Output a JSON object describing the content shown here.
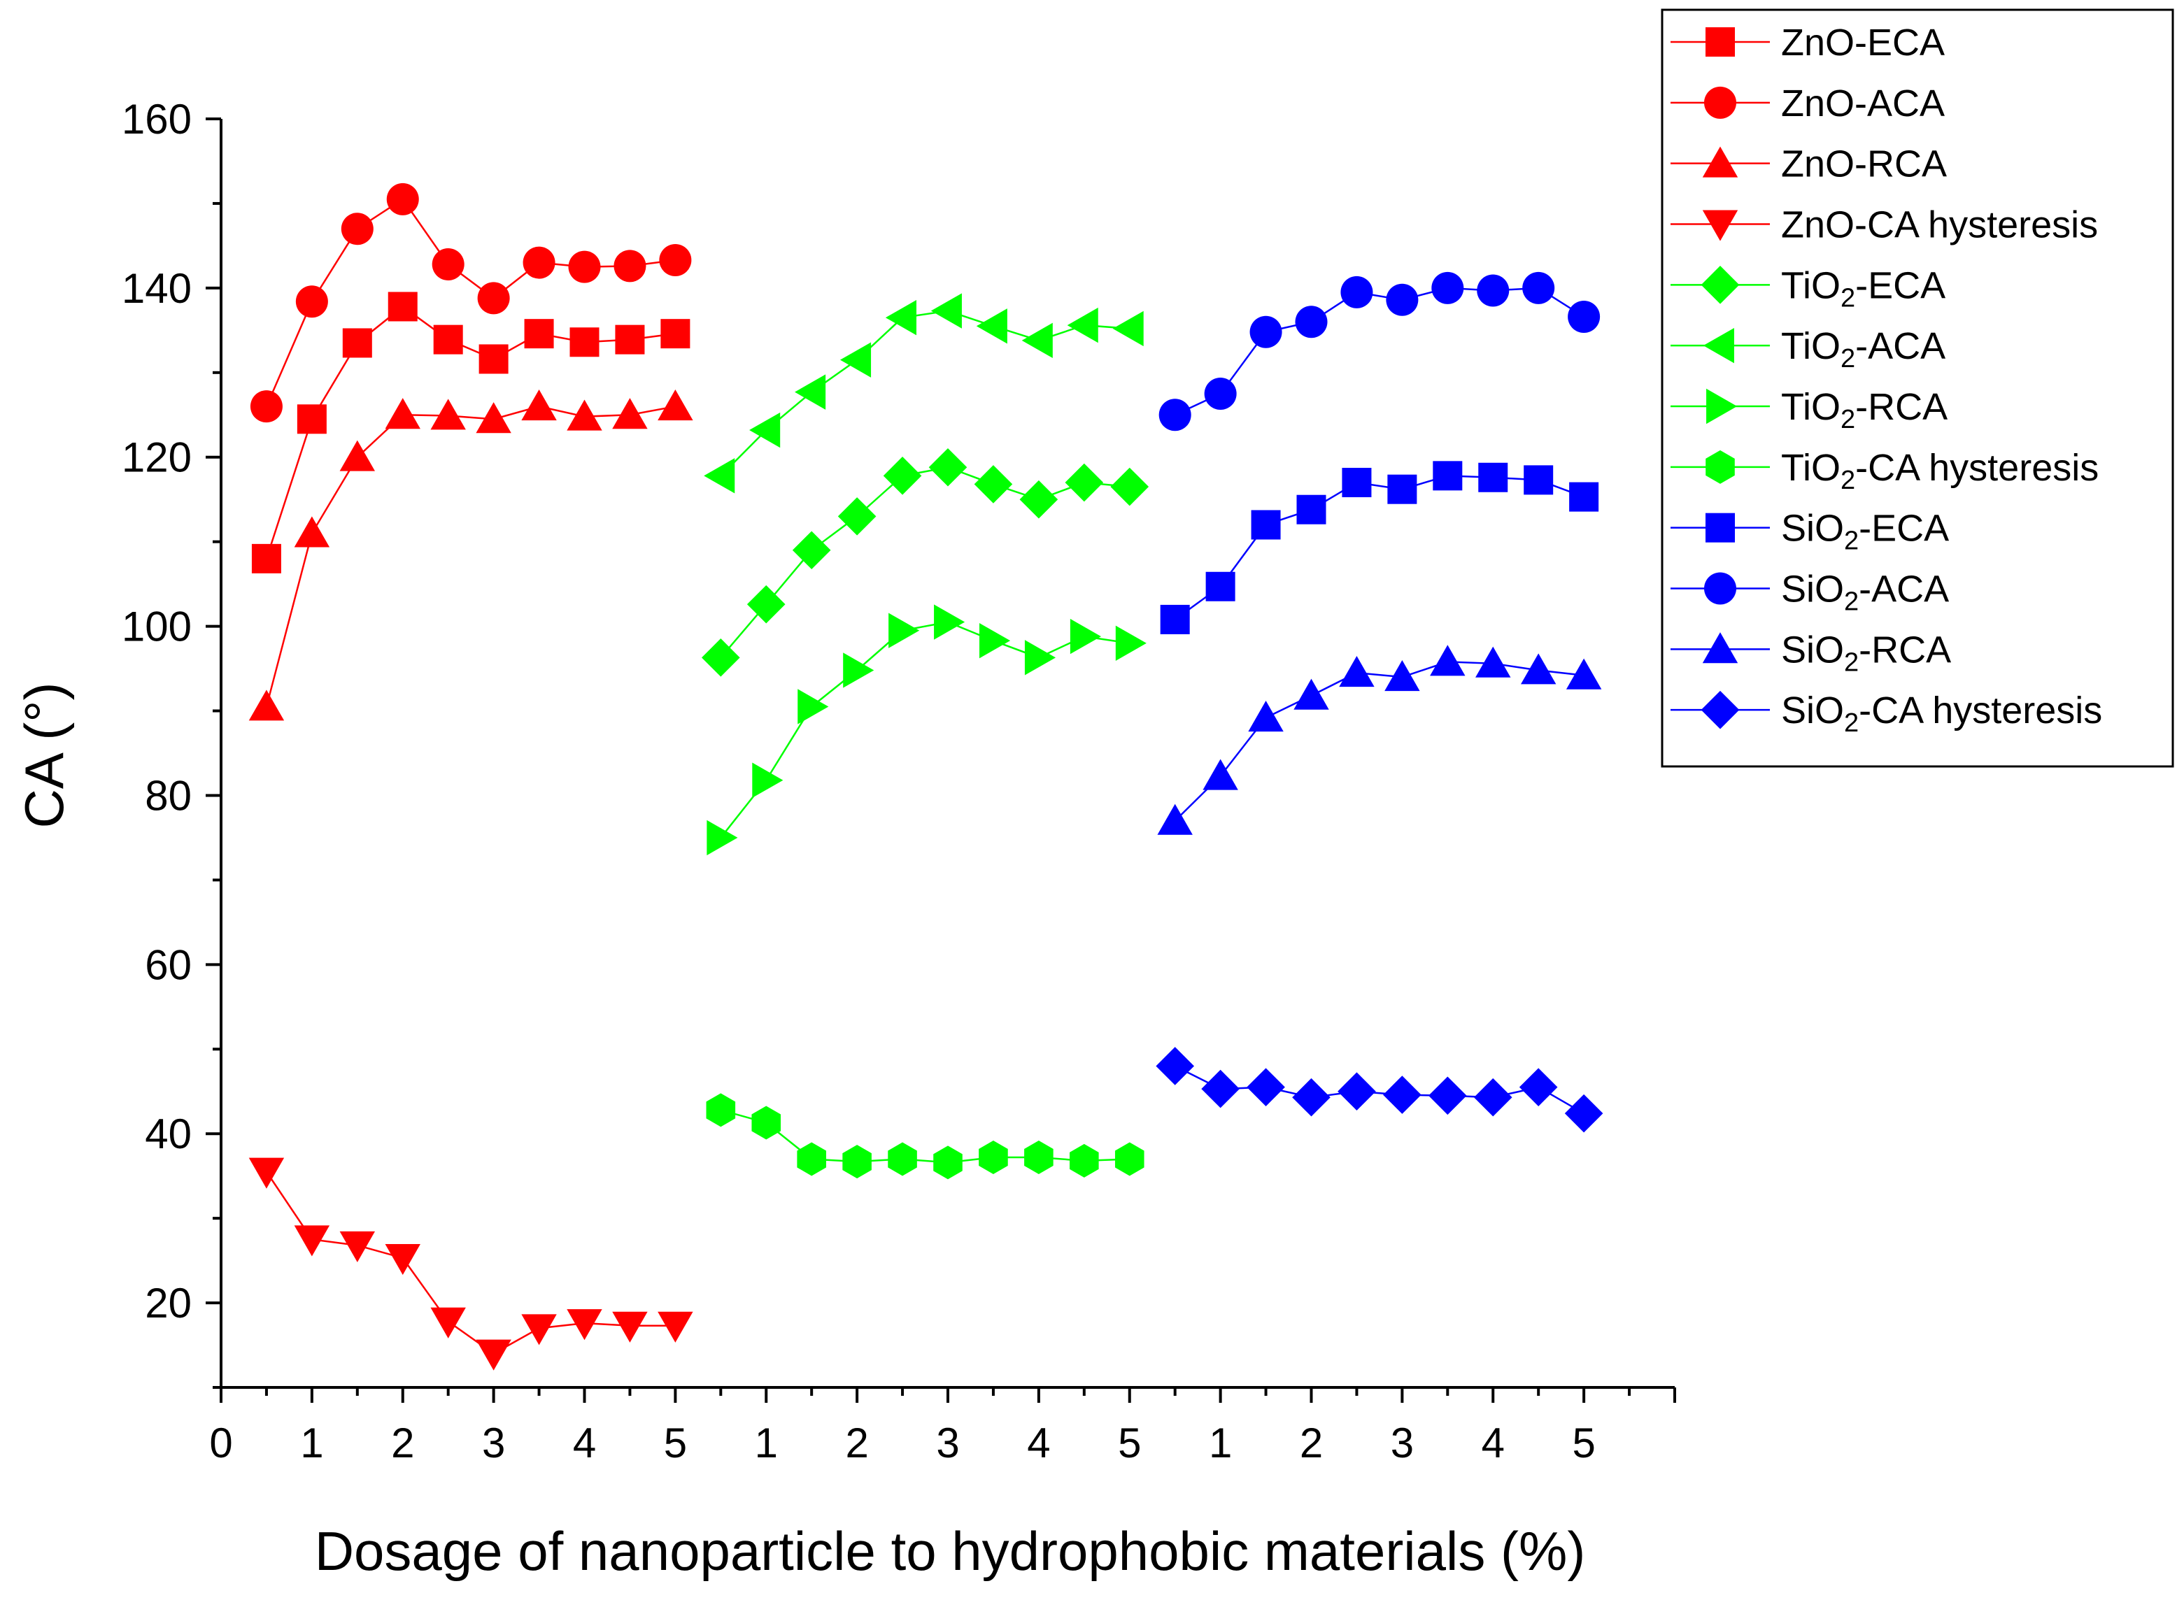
{
  "chart_data": {
    "type": "line",
    "xlabel": "Dosage of nanoparticle to hydrophobic materials (%)",
    "ylabel": "CA (°)",
    "ylim": [
      10,
      160
    ],
    "yticks": [
      20,
      40,
      60,
      80,
      100,
      120,
      140,
      160
    ],
    "xlim": [
      0,
      16
    ],
    "xtick_labels": [
      {
        "x": 0,
        "label": "0"
      },
      {
        "x": 1,
        "label": "1"
      },
      {
        "x": 2,
        "label": "2"
      },
      {
        "x": 3,
        "label": "3"
      },
      {
        "x": 4,
        "label": "4"
      },
      {
        "x": 5,
        "label": "5"
      },
      {
        "x": 6,
        "label": "1"
      },
      {
        "x": 7,
        "label": "2"
      },
      {
        "x": 8,
        "label": "3"
      },
      {
        "x": 9,
        "label": "4"
      },
      {
        "x": 10,
        "label": "5"
      },
      {
        "x": 11,
        "label": "1"
      },
      {
        "x": 12,
        "label": "2"
      },
      {
        "x": 13,
        "label": "3"
      },
      {
        "x": 14,
        "label": "4"
      },
      {
        "x": 15,
        "label": "5"
      }
    ],
    "legend_position": "top-right",
    "series": [
      {
        "name": "ZnO-ECA",
        "label": [
          "ZnO-ECA"
        ],
        "color": "#ff0000",
        "marker": "square",
        "x": [
          0.5,
          1,
          1.5,
          2,
          2.5,
          3,
          3.5,
          4,
          4.5,
          5
        ],
        "values": [
          108,
          124.5,
          133.5,
          137.8,
          133.9,
          131.6,
          134.6,
          133.6,
          133.9,
          134.6
        ]
      },
      {
        "name": "ZnO-ACA",
        "label": [
          "ZnO-ACA"
        ],
        "color": "#ff0000",
        "marker": "circle",
        "x": [
          0.5,
          1,
          1.5,
          2,
          2.5,
          3,
          3.5,
          4,
          4.5,
          5
        ],
        "values": [
          126,
          138.4,
          147,
          150.5,
          142.8,
          138.8,
          143,
          142.5,
          142.6,
          143.3
        ]
      },
      {
        "name": "ZnO-RCA",
        "label": [
          "ZnO-RCA"
        ],
        "color": "#ff0000",
        "marker": "triangle-up",
        "x": [
          0.5,
          1,
          1.5,
          2,
          2.5,
          3,
          3.5,
          4,
          4.5,
          5
        ],
        "values": [
          90.5,
          111,
          120,
          125,
          124.9,
          124.5,
          126,
          124.8,
          125,
          126
        ]
      },
      {
        "name": "ZnO-CA hysteresis",
        "label": [
          "ZnO-CA hysteresis"
        ],
        "color": "#ff0000",
        "marker": "triangle-down",
        "x": [
          0.5,
          1,
          1.5,
          2,
          2.5,
          3,
          3.5,
          4,
          4.5,
          5
        ],
        "values": [
          35.5,
          27.5,
          26.8,
          25.3,
          17.8,
          14,
          17,
          17.6,
          17.3,
          17.3
        ]
      },
      {
        "name": "TiO2-ECA",
        "label": [
          "TiO",
          "2",
          "-ECA"
        ],
        "color": "#00ff00",
        "marker": "diamond",
        "x": [
          5.5,
          6,
          6.5,
          7,
          7.5,
          8,
          8.5,
          9,
          9.5,
          10
        ],
        "values": [
          96.3,
          102.6,
          109,
          113,
          117.8,
          118.8,
          116.8,
          115,
          117,
          116.5
        ]
      },
      {
        "name": "TiO2-ACA",
        "label": [
          "TiO",
          "2",
          "-ACA"
        ],
        "color": "#00ff00",
        "marker": "triangle-left",
        "x": [
          5.5,
          6,
          6.5,
          7,
          7.5,
          8,
          8.5,
          9,
          9.5,
          10
        ],
        "values": [
          117.8,
          123.2,
          127.7,
          131.5,
          136.5,
          137.3,
          135.5,
          133.8,
          135.6,
          135.2
        ]
      },
      {
        "name": "TiO2-RCA",
        "label": [
          "TiO",
          "2",
          "-RCA"
        ],
        "color": "#00ff00",
        "marker": "triangle-right",
        "x": [
          5.5,
          6,
          6.5,
          7,
          7.5,
          8,
          8.5,
          9,
          9.5,
          10
        ],
        "values": [
          75,
          81.8,
          90.5,
          94.8,
          99.5,
          100.5,
          98.3,
          96.3,
          98.8,
          98
        ]
      },
      {
        "name": "TiO2-CA hysteresis",
        "label": [
          "TiO",
          "2",
          "-CA hysteresis"
        ],
        "color": "#00ff00",
        "marker": "hexagon",
        "x": [
          5.5,
          6,
          6.5,
          7,
          7.5,
          8,
          8.5,
          9,
          9.5,
          10
        ],
        "values": [
          42.8,
          41.3,
          37,
          36.7,
          37,
          36.6,
          37.2,
          37.2,
          36.8,
          37
        ]
      },
      {
        "name": "SiO2-ECA",
        "label": [
          "SiO",
          "2",
          "-ECA"
        ],
        "color": "#0000ff",
        "marker": "square",
        "x": [
          10.5,
          11,
          11.5,
          12,
          12.5,
          13,
          13.5,
          14,
          14.5,
          15
        ],
        "values": [
          100.8,
          104.7,
          112,
          113.8,
          117,
          116.2,
          117.8,
          117.6,
          117.3,
          115.3
        ]
      },
      {
        "name": "SiO2-ACA",
        "label": [
          "SiO",
          "2",
          "-ACA"
        ],
        "color": "#0000ff",
        "marker": "circle",
        "x": [
          10.5,
          11,
          11.5,
          12,
          12.5,
          13,
          13.5,
          14,
          14.5,
          15
        ],
        "values": [
          125,
          127.5,
          134.8,
          136,
          139.5,
          138.6,
          140,
          139.7,
          140,
          136.6
        ]
      },
      {
        "name": "SiO2-RCA",
        "label": [
          "SiO",
          "2",
          "-RCA"
        ],
        "color": "#0000ff",
        "marker": "triangle-up",
        "x": [
          10.5,
          11,
          11.5,
          12,
          12.5,
          13,
          13.5,
          14,
          14.5,
          15
        ],
        "values": [
          77,
          82.3,
          89.2,
          91.8,
          94.5,
          94,
          95.8,
          95.6,
          94.8,
          94.2
        ]
      },
      {
        "name": "SiO2-CA hysteresis",
        "label": [
          "SiO",
          "2",
          "-CA hysteresis"
        ],
        "color": "#0000ff",
        "marker": "diamond",
        "x": [
          10.5,
          11,
          11.5,
          12,
          12.5,
          13,
          13.5,
          14,
          14.5,
          15
        ],
        "values": [
          48,
          45.3,
          45.5,
          44.3,
          45,
          44.6,
          44.5,
          44.3,
          45.5,
          42.4
        ]
      }
    ]
  }
}
